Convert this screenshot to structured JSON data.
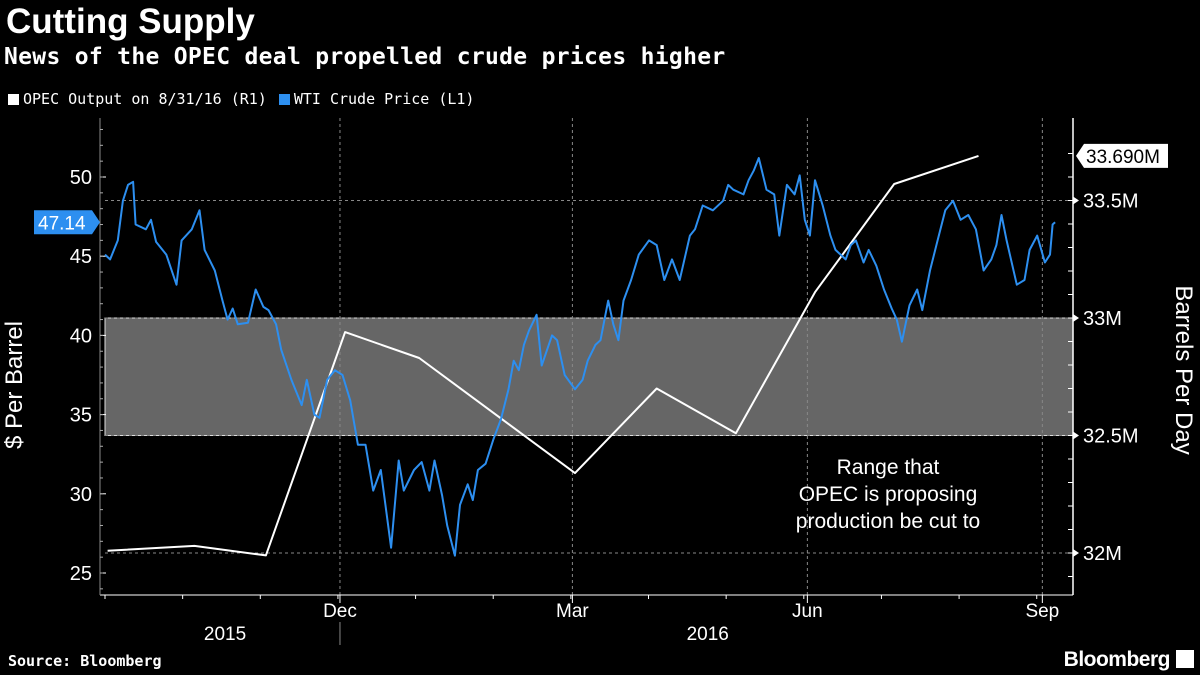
{
  "header": {
    "title": "Cutting Supply",
    "subtitle": "News of the OPEC deal propelled crude prices higher"
  },
  "footer": {
    "source": "Source: Bloomberg",
    "brand": "Bloomberg"
  },
  "colors": {
    "opec": "#ffffff",
    "wti": "#2d8ff0",
    "band": "#666666"
  },
  "chart_data": {
    "type": "line",
    "title": "Cutting Supply",
    "subtitle": "News of the OPEC deal propelled crude prices higher",
    "x_unit": "days since 2015-08-31",
    "xlim": [
      0,
      379
    ],
    "x_ticks": [
      {
        "label": "Dec",
        "day": 92
      },
      {
        "label": "Mar",
        "day": 183
      },
      {
        "label": "Jun",
        "day": 275
      },
      {
        "label": "Sep",
        "day": 367
      }
    ],
    "x_years": [
      {
        "label": "2015",
        "day": 47
      },
      {
        "label": "2016",
        "day": 236
      }
    ],
    "left_axis": {
      "label": "$ Per Barrel",
      "ylim": [
        23.5,
        54
      ],
      "ticks": [
        "25",
        "30",
        "35",
        "40",
        "45",
        "50"
      ],
      "tick_values": [
        25,
        30,
        35,
        40,
        45,
        50
      ]
    },
    "right_axis": {
      "label": "Barrels Per Day",
      "ylim": [
        31.83,
        33.86
      ],
      "ticks": [
        "32M",
        "32.5M",
        "33M",
        "33.5M"
      ],
      "tick_values": [
        32,
        32.5,
        33,
        33.5
      ]
    },
    "legend": [
      {
        "name": "OPEC Output on 8/31/16 (R1)"
      },
      {
        "name": "WTI Crude Price (L1)"
      }
    ],
    "last_labels": {
      "wti": "47.14",
      "opec": "33.690M"
    },
    "band": {
      "from": 32.5,
      "to": 33.0,
      "annotation": [
        "Range that",
        "OPEC is proposing",
        "production be cut to"
      ]
    },
    "series": [
      {
        "name": "OPEC Output on 8/31/16 (R1)",
        "axis": "right",
        "unit": "million barrels per day",
        "points": [
          [
            1,
            32.01
          ],
          [
            35,
            32.03
          ],
          [
            63,
            31.99
          ],
          [
            94,
            32.94
          ],
          [
            123,
            32.83
          ],
          [
            184,
            32.34
          ],
          [
            216,
            32.7
          ],
          [
            247,
            32.51
          ],
          [
            278,
            33.11
          ],
          [
            309,
            33.57
          ],
          [
            342,
            33.69
          ]
        ]
      },
      {
        "name": "WTI Crude Price (L1)",
        "axis": "left",
        "unit": "USD per barrel",
        "points": [
          [
            0,
            45.1
          ],
          [
            2,
            44.8
          ],
          [
            5,
            46.0
          ],
          [
            7,
            48.5
          ],
          [
            9,
            49.5
          ],
          [
            11,
            49.7
          ],
          [
            12,
            47.0
          ],
          [
            16,
            46.7
          ],
          [
            18,
            47.3
          ],
          [
            20,
            45.9
          ],
          [
            24,
            45.1
          ],
          [
            28,
            43.2
          ],
          [
            30,
            46.0
          ],
          [
            34,
            46.7
          ],
          [
            37,
            47.9
          ],
          [
            39,
            45.4
          ],
          [
            43,
            44.1
          ],
          [
            46,
            42.2
          ],
          [
            48,
            41.0
          ],
          [
            50,
            41.7
          ],
          [
            52,
            40.7
          ],
          [
            56,
            40.8
          ],
          [
            59,
            42.9
          ],
          [
            62,
            41.8
          ],
          [
            64,
            41.6
          ],
          [
            67,
            40.7
          ],
          [
            69,
            39.1
          ],
          [
            73,
            37.2
          ],
          [
            77,
            35.6
          ],
          [
            79,
            37.2
          ],
          [
            82,
            35.0
          ],
          [
            84,
            34.8
          ],
          [
            87,
            37.2
          ],
          [
            90,
            37.8
          ],
          [
            93,
            37.5
          ],
          [
            96,
            35.9
          ],
          [
            99,
            33.1
          ],
          [
            102,
            33.1
          ],
          [
            105,
            30.2
          ],
          [
            108,
            31.5
          ],
          [
            112,
            26.6
          ],
          [
            115,
            32.1
          ],
          [
            117,
            30.2
          ],
          [
            121,
            31.5
          ],
          [
            124,
            32.0
          ],
          [
            127,
            30.2
          ],
          [
            129,
            32.1
          ],
          [
            132,
            29.9
          ],
          [
            134,
            28.0
          ],
          [
            137,
            26.1
          ],
          [
            139,
            29.3
          ],
          [
            142,
            30.6
          ],
          [
            144,
            29.6
          ],
          [
            146,
            31.5
          ],
          [
            149,
            31.9
          ],
          [
            152,
            33.4
          ],
          [
            155,
            34.7
          ],
          [
            158,
            36.6
          ],
          [
            160,
            38.4
          ],
          [
            162,
            37.8
          ],
          [
            164,
            39.4
          ],
          [
            166,
            40.3
          ],
          [
            169,
            41.3
          ],
          [
            171,
            38.1
          ],
          [
            175,
            40.0
          ],
          [
            177,
            39.7
          ],
          [
            180,
            37.5
          ],
          [
            184,
            36.6
          ],
          [
            187,
            37.2
          ],
          [
            189,
            38.4
          ],
          [
            192,
            39.4
          ],
          [
            194,
            39.7
          ],
          [
            197,
            42.2
          ],
          [
            199,
            40.7
          ],
          [
            201,
            39.7
          ],
          [
            203,
            42.2
          ],
          [
            206,
            43.5
          ],
          [
            209,
            45.1
          ],
          [
            213,
            46.0
          ],
          [
            216,
            45.7
          ],
          [
            219,
            43.5
          ],
          [
            222,
            44.8
          ],
          [
            225,
            43.5
          ],
          [
            229,
            46.3
          ],
          [
            231,
            46.7
          ],
          [
            234,
            48.2
          ],
          [
            238,
            47.9
          ],
          [
            242,
            48.5
          ],
          [
            244,
            49.5
          ],
          [
            246,
            49.2
          ],
          [
            250,
            48.9
          ],
          [
            252,
            49.8
          ],
          [
            254,
            50.4
          ],
          [
            256,
            51.2
          ],
          [
            259,
            49.2
          ],
          [
            262,
            48.9
          ],
          [
            264,
            46.3
          ],
          [
            267,
            49.5
          ],
          [
            270,
            48.9
          ],
          [
            272,
            50.1
          ],
          [
            274,
            47.3
          ],
          [
            276,
            46.3
          ],
          [
            278,
            49.8
          ],
          [
            281,
            48.2
          ],
          [
            284,
            46.3
          ],
          [
            286,
            45.4
          ],
          [
            290,
            44.8
          ],
          [
            292,
            45.7
          ],
          [
            294,
            46.0
          ],
          [
            297,
            44.6
          ],
          [
            299,
            45.4
          ],
          [
            302,
            44.4
          ],
          [
            305,
            42.9
          ],
          [
            308,
            41.7
          ],
          [
            310,
            41.0
          ],
          [
            312,
            39.6
          ],
          [
            315,
            41.9
          ],
          [
            318,
            42.9
          ],
          [
            320,
            41.6
          ],
          [
            323,
            44.1
          ],
          [
            326,
            46.0
          ],
          [
            329,
            47.9
          ],
          [
            332,
            48.5
          ],
          [
            335,
            47.3
          ],
          [
            338,
            47.6
          ],
          [
            341,
            46.7
          ],
          [
            344,
            44.1
          ],
          [
            347,
            44.8
          ],
          [
            349,
            45.7
          ],
          [
            351,
            47.6
          ],
          [
            353,
            46.0
          ],
          [
            357,
            43.2
          ],
          [
            360,
            43.5
          ],
          [
            362,
            45.4
          ],
          [
            365,
            46.3
          ],
          [
            368,
            44.6
          ],
          [
            370,
            45.1
          ],
          [
            371,
            47.0
          ],
          [
            372,
            47.14
          ]
        ]
      }
    ]
  }
}
